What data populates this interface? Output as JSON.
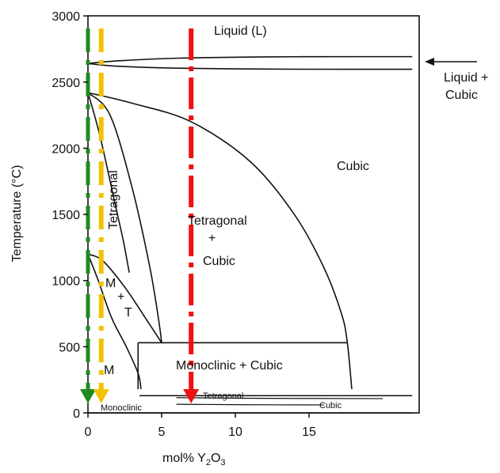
{
  "chart_data": {
    "type": "phase-diagram",
    "title": "",
    "xlabel": {
      "prefix": "mol% Y",
      "sub1": "2",
      "mid": "O",
      "sub2": "3"
    },
    "ylabel": "Temperature (°C)",
    "xlim": [
      0,
      22
    ],
    "ylim": [
      0,
      3000
    ],
    "x_ticks": [
      "0",
      "5",
      "10",
      "15"
    ],
    "y_ticks": [
      "0",
      "500",
      "1000",
      "1500",
      "2000",
      "2500",
      "3000"
    ],
    "regions": {
      "liquid": "Liquid (L)",
      "liquid_cubic_line1": "Liquid +",
      "liquid_cubic_line2": "Cubic",
      "cubic": "Cubic",
      "tetragonal": "Tetragonal",
      "tet_cubic_1": "Tetragonal",
      "tet_cubic_2": "+",
      "tet_cubic_3": "Cubic",
      "m_plus_t_1": "M",
      "m_plus_t_2": "+",
      "m_plus_t_3": "T",
      "monoclinic_m": "M",
      "monoclinic_cubic": "Monoclinic + Cubic",
      "low_tetragonal": "Tetragonal",
      "low_monoclinic": "Monoclinic",
      "low_cubic": "Cubic"
    },
    "markers": [
      {
        "name": "green",
        "x": 0,
        "color": "#1f8a1f"
      },
      {
        "name": "yellow",
        "x": 0.9,
        "color": "#f2c200"
      },
      {
        "name": "red",
        "x": 7,
        "color": "#ee1111"
      }
    ],
    "boundaries": {
      "liquidus": [
        [
          0,
          2640
        ],
        [
          2,
          2660
        ],
        [
          6,
          2680
        ],
        [
          12,
          2690
        ],
        [
          18,
          2692
        ],
        [
          22,
          2692
        ]
      ],
      "solidus": [
        [
          0,
          2640
        ],
        [
          2,
          2620
        ],
        [
          6,
          2605
        ],
        [
          12,
          2598
        ],
        [
          18,
          2597
        ],
        [
          22,
          2597
        ]
      ],
      "cubic_solvus": [
        [
          0,
          2420
        ],
        [
          3,
          2340
        ],
        [
          7,
          2200
        ],
        [
          11,
          1900
        ],
        [
          14,
          1500
        ],
        [
          16,
          1100
        ],
        [
          17.2,
          750
        ],
        [
          17.6,
          530
        ],
        [
          17.9,
          180
        ]
      ],
      "tetragonal_outer": [
        [
          0,
          2420
        ],
        [
          1.5,
          2250
        ],
        [
          3,
          1700
        ],
        [
          4.2,
          1100
        ],
        [
          4.8,
          700
        ],
        [
          5,
          530
        ]
      ],
      "tetragonal_inner": [
        [
          0,
          2420
        ],
        [
          0.8,
          2100
        ],
        [
          1.8,
          1600
        ],
        [
          2.4,
          1300
        ],
        [
          2.8,
          1060
        ]
      ],
      "mt_upper": [
        [
          0,
          1200
        ],
        [
          1,
          1150
        ],
        [
          2.5,
          950
        ],
        [
          4,
          700
        ],
        [
          5,
          530
        ]
      ],
      "mt_lower": [
        [
          0,
          1200
        ],
        [
          0.7,
          1000
        ],
        [
          1.6,
          720
        ],
        [
          2.6,
          500
        ],
        [
          3.4,
          300
        ],
        [
          3.6,
          180
        ]
      ],
      "eutectoid": [
        [
          3.4,
          530
        ],
        [
          17.6,
          530
        ]
      ],
      "mc_left": [
        [
          3.4,
          530
        ],
        [
          3.4,
          180
        ]
      ],
      "low_top": [
        [
          3.5,
          130
        ],
        [
          22,
          130
        ]
      ],
      "low_bottom": [
        [
          0,
          0
        ],
        [
          22,
          0
        ]
      ],
      "low_tet_line": [
        [
          6,
          115
        ],
        [
          12,
          110
        ],
        [
          20,
          108
        ]
      ],
      "low_mono_line": [
        [
          6,
          65
        ],
        [
          10,
          62
        ],
        [
          16,
          60
        ]
      ]
    }
  }
}
